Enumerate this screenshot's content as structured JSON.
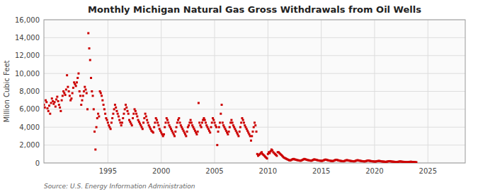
{
  "chart_data": {
    "type": "scatter",
    "title": "Monthly Michigan Natural Gas Gross Withdrawals from Oil Wells",
    "ylabel": "Million Cubic Feet",
    "source": "Source: U.S. Energy Information Administration",
    "color": "#cc0000",
    "marker": "square",
    "grid": true,
    "xlim": [
      1989.0,
      2028.5
    ],
    "xticks": [
      1995,
      2000,
      2005,
      2010,
      2015,
      2020,
      2025
    ],
    "ylim": [
      0,
      16000
    ],
    "yticks": [
      0,
      {
        "value": 2000,
        "label": "2,000"
      },
      {
        "value": 4000,
        "label": "4,000"
      },
      {
        "value": 6000,
        "label": "6,000"
      },
      {
        "value": 8000,
        "label": "8,000"
      },
      {
        "value": 10000,
        "label": "10,000"
      },
      {
        "value": 12000,
        "label": "12,000"
      },
      {
        "value": 14000,
        "label": "14,000"
      },
      {
        "value": 16000,
        "label": "16,000"
      }
    ],
    "x": [
      1989,
      1989.0833333333333,
      1989.1666666666667,
      1989.25,
      1989.3333333333333,
      1989.4166666666667,
      1989.5,
      1989.5833333333333,
      1989.6666666666667,
      1989.75,
      1989.8333333333333,
      1989.9166666666667,
      1990,
      1990.0833333333333,
      1990.1666666666667,
      1990.25,
      1990.3333333333333,
      1990.4166666666667,
      1990.5,
      1990.5833333333333,
      1990.6666666666667,
      1990.75,
      1990.8333333333333,
      1990.9166666666667,
      1991,
      1991.0833333333333,
      1991.1666666666667,
      1991.25,
      1991.3333333333333,
      1991.4166666666667,
      1991.5,
      1991.5833333333333,
      1991.6666666666667,
      1991.75,
      1991.8333333333333,
      1991.9166666666667,
      1992,
      1992.0833333333333,
      1992.1666666666667,
      1992.25,
      1992.3333333333333,
      1992.4166666666667,
      1992.5,
      1992.5833333333333,
      1992.6666666666667,
      1992.75,
      1992.8333333333333,
      1992.9166666666667,
      1993,
      1993.0833333333333,
      1993.1666666666667,
      1993.25,
      1993.3333333333333,
      1993.4166666666667,
      1993.5,
      1993.5833333333333,
      1993.6666666666667,
      1993.75,
      1993.8333333333333,
      1993.9166666666667,
      1994,
      1994.0833333333333,
      1994.1666666666667,
      1994.25,
      1994.3333333333333,
      1994.4166666666667,
      1994.5,
      1994.5833333333333,
      1994.6666666666667,
      1994.75,
      1994.8333333333333,
      1994.9166666666667,
      1995,
      1995.0833333333333,
      1995.1666666666667,
      1995.25,
      1995.3333333333333,
      1995.4166666666667,
      1995.5,
      1995.5833333333333,
      1995.6666666666667,
      1995.75,
      1995.8333333333333,
      1995.9166666666667,
      1996,
      1996.0833333333333,
      1996.1666666666667,
      1996.25,
      1996.3333333333333,
      1996.4166666666667,
      1996.5,
      1996.5833333333333,
      1996.6666666666667,
      1996.75,
      1996.8333333333333,
      1996.9166666666667,
      1997,
      1997.0833333333333,
      1997.1666666666667,
      1997.25,
      1997.3333333333333,
      1997.4166666666667,
      1997.5,
      1997.5833333333333,
      1997.6666666666667,
      1997.75,
      1997.8333333333333,
      1997.9166666666667,
      1998,
      1998.0833333333333,
      1998.1666666666667,
      1998.25,
      1998.3333333333333,
      1998.4166666666667,
      1998.5,
      1998.5833333333333,
      1998.6666666666667,
      1998.75,
      1998.8333333333333,
      1998.9166666666667,
      1999,
      1999.0833333333333,
      1999.1666666666667,
      1999.25,
      1999.3333333333333,
      1999.4166666666667,
      1999.5,
      1999.5833333333333,
      1999.6666666666667,
      1999.75,
      1999.8333333333333,
      1999.9166666666667,
      2000,
      2000.0833333333333,
      2000.1666666666667,
      2000.25,
      2000.3333333333333,
      2000.4166666666667,
      2000.5,
      2000.5833333333333,
      2000.6666666666667,
      2000.75,
      2000.8333333333333,
      2000.9166666666667,
      2001,
      2001.0833333333333,
      2001.1666666666667,
      2001.25,
      2001.3333333333333,
      2001.4166666666667,
      2001.5,
      2001.5833333333333,
      2001.6666666666667,
      2001.75,
      2001.8333333333333,
      2001.9166666666667,
      2002,
      2002.0833333333333,
      2002.1666666666667,
      2002.25,
      2002.3333333333333,
      2002.4166666666667,
      2002.5,
      2002.5833333333333,
      2002.6666666666667,
      2002.75,
      2002.8333333333333,
      2002.9166666666667,
      2003,
      2003.0833333333333,
      2003.1666666666667,
      2003.25,
      2003.3333333333333,
      2003.4166666666667,
      2003.5,
      2003.5833333333333,
      2003.6666666666667,
      2003.75,
      2003.8333333333333,
      2003.9166666666667,
      2004,
      2004.0833333333333,
      2004.1666666666667,
      2004.25,
      2004.3333333333333,
      2004.4166666666667,
      2004.5,
      2004.5833333333333,
      2004.6666666666667,
      2004.75,
      2004.8333333333333,
      2004.9166666666667,
      2005,
      2005.0833333333333,
      2005.1666666666667,
      2005.25,
      2005.3333333333333,
      2005.4166666666667,
      2005.5,
      2005.5833333333333,
      2005.6666666666667,
      2005.75,
      2005.8333333333333,
      2005.9166666666667,
      2006,
      2006.0833333333333,
      2006.1666666666667,
      2006.25,
      2006.3333333333333,
      2006.4166666666667,
      2006.5,
      2006.5833333333333,
      2006.6666666666667,
      2006.75,
      2006.8333333333333,
      2006.9166666666667,
      2007,
      2007.0833333333333,
      2007.1666666666667,
      2007.25,
      2007.3333333333333,
      2007.4166666666667,
      2007.5,
      2007.5833333333333,
      2007.6666666666667,
      2007.75,
      2007.8333333333333,
      2007.9166666666667,
      2008,
      2008.0833333333333,
      2008.1666666666667,
      2008.25,
      2008.3333333333333,
      2008.4166666666667,
      2008.5,
      2008.5833333333333,
      2008.6666666666667,
      2008.75,
      2008.8333333333333,
      2008.9166666666667,
      2009,
      2009.0833333333333,
      2009.1666666666667,
      2009.25,
      2009.3333333333333,
      2009.4166666666667,
      2009.5,
      2009.5833333333333,
      2009.6666666666667,
      2009.75,
      2009.8333333333333,
      2009.9166666666667,
      2010,
      2010.0833333333333,
      2010.1666666666667,
      2010.25,
      2010.3333333333333,
      2010.4166666666667,
      2010.5,
      2010.5833333333333,
      2010.6666666666667,
      2010.75,
      2010.8333333333333,
      2010.9166666666667,
      2011,
      2011.0833333333333,
      2011.1666666666667,
      2011.25,
      2011.3333333333333,
      2011.4166666666667,
      2011.5,
      2011.5833333333333,
      2011.6666666666667,
      2011.75,
      2011.8333333333333,
      2011.9166666666667,
      2012,
      2012.0833333333333,
      2012.1666666666667,
      2012.25,
      2012.3333333333333,
      2012.4166666666667,
      2012.5,
      2012.5833333333333,
      2012.6666666666667,
      2012.75,
      2012.8333333333333,
      2012.9166666666667,
      2013,
      2013.0833333333333,
      2013.1666666666667,
      2013.25,
      2013.3333333333333,
      2013.4166666666667,
      2013.5,
      2013.5833333333333,
      2013.6666666666667,
      2013.75,
      2013.8333333333333,
      2013.9166666666667,
      2014,
      2014.0833333333333,
      2014.1666666666667,
      2014.25,
      2014.3333333333333,
      2014.4166666666667,
      2014.5,
      2014.5833333333333,
      2014.6666666666667,
      2014.75,
      2014.8333333333333,
      2014.9166666666667,
      2015,
      2015.0833333333333,
      2015.1666666666667,
      2015.25,
      2015.3333333333333,
      2015.4166666666667,
      2015.5,
      2015.5833333333333,
      2015.6666666666667,
      2015.75,
      2015.8333333333333,
      2015.9166666666667,
      2016,
      2016.0833333333333,
      2016.1666666666667,
      2016.25,
      2016.3333333333333,
      2016.4166666666667,
      2016.5,
      2016.5833333333333,
      2016.6666666666667,
      2016.75,
      2016.8333333333333,
      2016.9166666666667,
      2017,
      2017.0833333333333,
      2017.1666666666667,
      2017.25,
      2017.3333333333333,
      2017.4166666666667,
      2017.5,
      2017.5833333333333,
      2017.6666666666667,
      2017.75,
      2017.8333333333333,
      2017.9166666666667,
      2018,
      2018.0833333333333,
      2018.1666666666667,
      2018.25,
      2018.3333333333333,
      2018.4166666666667,
      2018.5,
      2018.5833333333333,
      2018.6666666666667,
      2018.75,
      2018.8333333333333,
      2018.9166666666667,
      2019,
      2019.0833333333333,
      2019.1666666666667,
      2019.25,
      2019.3333333333333,
      2019.4166666666667,
      2019.5,
      2019.5833333333333,
      2019.6666666666667,
      2019.75,
      2019.8333333333333,
      2019.9166666666667,
      2020,
      2020.0833333333333,
      2020.1666666666667,
      2020.25,
      2020.3333333333333,
      2020.4166666666667,
      2020.5,
      2020.5833333333333,
      2020.6666666666667,
      2020.75,
      2020.8333333333333,
      2020.9166666666667,
      2021,
      2021.0833333333333,
      2021.1666666666667,
      2021.25,
      2021.3333333333333,
      2021.4166666666667,
      2021.5,
      2021.5833333333333,
      2021.6666666666667,
      2021.75,
      2021.8333333333333,
      2021.9166666666667,
      2022,
      2022.0833333333333,
      2022.1666666666667,
      2022.25,
      2022.3333333333333,
      2022.4166666666667,
      2022.5,
      2022.5833333333333,
      2022.6666666666667,
      2022.75,
      2022.8333333333333,
      2022.9166666666667,
      2023,
      2023.0833333333333,
      2023.1666666666667,
      2023.25,
      2023.3333333333333,
      2023.4166666666667,
      2023.5,
      2023.5833333333333,
      2023.6666666666667,
      2023.75,
      2023.8333333333333,
      2023.9166666666667
    ],
    "values": [
      6500,
      6200,
      7000,
      6800,
      6100,
      5800,
      6400,
      5500,
      6700,
      7200,
      6900,
      6600,
      6800,
      6300,
      7100,
      7400,
      6900,
      6500,
      6200,
      5800,
      7000,
      7500,
      8000,
      7800,
      7600,
      8200,
      9800,
      8500,
      8000,
      7500,
      7000,
      7200,
      7800,
      8400,
      9000,
      8800,
      8600,
      9000,
      9500,
      10000,
      8000,
      7500,
      6500,
      7000,
      7500,
      8000,
      8500,
      8200,
      7800,
      6000,
      14500,
      12800,
      11500,
      9500,
      8000,
      7500,
      6000,
      3500,
      1500,
      4000,
      5000,
      5500,
      5200,
      8000,
      7800,
      7500,
      7000,
      6500,
      6000,
      5500,
      5000,
      4800,
      4500,
      4200,
      4000,
      3800,
      4500,
      5000,
      5500,
      6000,
      6500,
      6200,
      5800,
      5500,
      5200,
      4800,
      4500,
      4200,
      4500,
      5000,
      5500,
      6000,
      6500,
      6200,
      5800,
      5500,
      4800,
      4600,
      4400,
      4200,
      5000,
      5500,
      6000,
      5800,
      5500,
      5200,
      4800,
      4600,
      4400,
      4200,
      4000,
      3800,
      4500,
      5000,
      5500,
      5200,
      4800,
      4500,
      4200,
      4000,
      3800,
      3600,
      3500,
      3400,
      4000,
      4500,
      5000,
      4800,
      4500,
      4200,
      3800,
      3600,
      3400,
      3200,
      3000,
      3200,
      4000,
      4500,
      5000,
      4800,
      4500,
      4200,
      4000,
      3800,
      3600,
      3400,
      3200,
      3000,
      3500,
      4000,
      4500,
      4800,
      5000,
      4500,
      4200,
      4000,
      3800,
      3600,
      3400,
      3200,
      3000,
      3500,
      4000,
      4200,
      4500,
      4800,
      4500,
      4200,
      4000,
      3800,
      3600,
      3400,
      3200,
      3500,
      6700,
      4500,
      4200,
      4000,
      4500,
      4800,
      5000,
      4800,
      4500,
      4200,
      4000,
      3800,
      3600,
      3400,
      4000,
      4500,
      5000,
      4800,
      4500,
      4200,
      4000,
      2000,
      3500,
      4000,
      4500,
      5500,
      6500,
      4500,
      4200,
      4000,
      3800,
      3600,
      3400,
      3200,
      3500,
      4000,
      4500,
      4800,
      4500,
      4200,
      4000,
      3800,
      3600,
      3400,
      3200,
      3000,
      3500,
      4000,
      4500,
      5000,
      4800,
      4500,
      4200,
      4000,
      3800,
      3600,
      3400,
      3200,
      3000,
      2500,
      3000,
      3500,
      4000,
      4500,
      4200,
      3500,
      1000,
      800,
      900,
      1000,
      1100,
      1200,
      1000,
      900,
      800,
      700,
      600,
      500,
      1000,
      1200,
      1100,
      1300,
      1500,
      1400,
      1200,
      1100,
      1000,
      900,
      800,
      1200,
      1200,
      1100,
      1000,
      900,
      800,
      700,
      600,
      550,
      500,
      450,
      400,
      350,
      300,
      280,
      320,
      380,
      420,
      450,
      400,
      380,
      350,
      320,
      300,
      280,
      260,
      250,
      300,
      350,
      400,
      450,
      420,
      380,
      350,
      320,
      300,
      280,
      260,
      250,
      300,
      350,
      400,
      380,
      360,
      330,
      300,
      280,
      260,
      250,
      240,
      230,
      270,
      310,
      360,
      380,
      350,
      320,
      290,
      270,
      250,
      230,
      220,
      210,
      250,
      290,
      340,
      360,
      330,
      300,
      270,
      250,
      230,
      210,
      200,
      190,
      220,
      260,
      300,
      320,
      290,
      270,
      250,
      230,
      210,
      200,
      190,
      180,
      210,
      250,
      290,
      310,
      280,
      260,
      240,
      220,
      200,
      190,
      180,
      170,
      200,
      230,
      260,
      280,
      250,
      230,
      210,
      190,
      180,
      170,
      160,
      150,
      180,
      200,
      220,
      230,
      210,
      190,
      170,
      160,
      150,
      140,
      130,
      120,
      150,
      170,
      190,
      200,
      180,
      160,
      150,
      140,
      130,
      120,
      110,
      100,
      120,
      140,
      160,
      170,
      150,
      140,
      130,
      120,
      110,
      100,
      90,
      85,
      100,
      115,
      130,
      140,
      120,
      110,
      100,
      90,
      85,
      80
    ]
  }
}
